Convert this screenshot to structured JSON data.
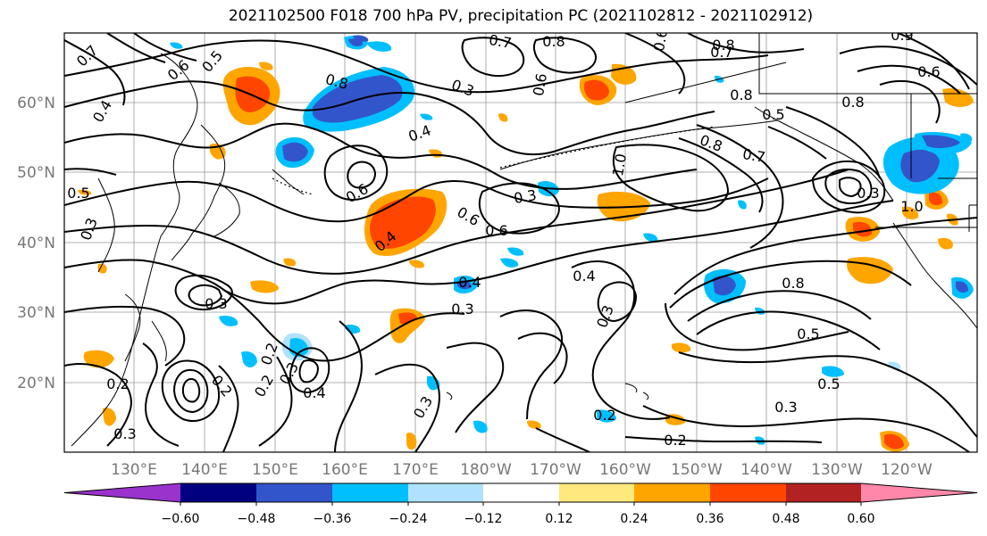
{
  "title": "2021102500 F018 700 hPa PV, precipitation PC (2021102812 - 2021102912)",
  "lat_labels": [
    "60°N",
    "50°N",
    "40°N",
    "30°N",
    "20°N"
  ],
  "lon_labels": [
    "130°E",
    "140°E",
    "150°E",
    "160°E",
    "170°E",
    "180°W",
    "170°W",
    "160°W",
    "150°W",
    "140°W",
    "130°W",
    "120°W"
  ],
  "colorbar": {
    "labels": [
      "−0.60",
      "−0.48",
      "−0.36",
      "−0.24",
      "−0.12",
      "0.12",
      "0.24",
      "0.36",
      "0.48",
      "0.60"
    ],
    "colors": [
      "#9933cc",
      "#000080",
      "#3355cc",
      "#00bfff",
      "#b0e2ff",
      "#ffffff",
      "#ffe97f",
      "#ffa500",
      "#ff4500",
      "#b22222",
      "#ff88aa"
    ]
  },
  "contour_labels": [
    "0.7",
    "0.6",
    "0.5",
    "0.4",
    "0.8",
    "0.3",
    "0.4",
    "0.6",
    "0.6",
    "0.4",
    "0.7",
    "0.8",
    "0.8",
    "0.7",
    "0.6",
    "0.3",
    "0.6",
    "0.4",
    "0.6",
    "0.3",
    "0.4",
    "0.3",
    "1.0",
    "0.8",
    "0.7",
    "0.5",
    "0.8",
    "0.9",
    "0.6",
    "0.8",
    "0.5",
    "0.3",
    "0.4",
    "0.3",
    "0.2",
    "0.2",
    "0.3",
    "0.2",
    "0.3",
    "0.5",
    "0.5",
    "0.3",
    "0.2",
    "0.2",
    "0.2",
    "0.3",
    "0.3",
    "0.8",
    "1.0"
  ],
  "colors": {
    "contour": "#000000",
    "grid": "#999999",
    "coast": "#000000"
  }
}
